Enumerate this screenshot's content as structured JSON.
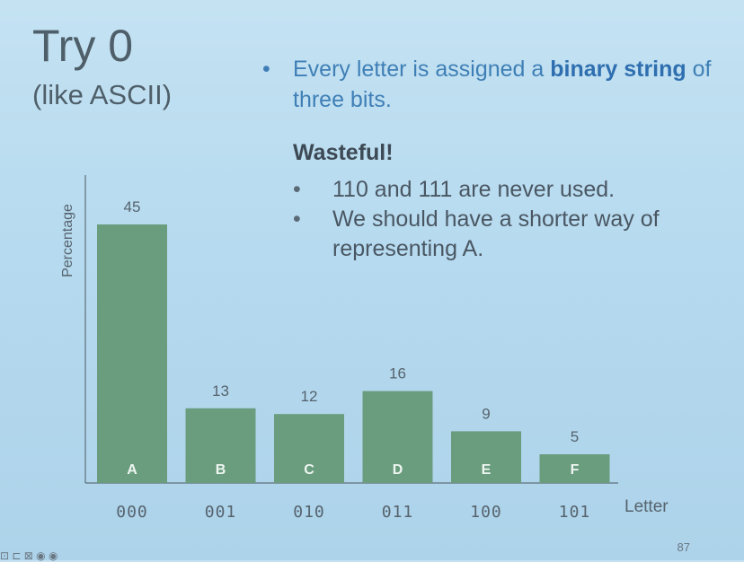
{
  "slide": {
    "title": "Try 0",
    "subtitle": "(like ASCII)",
    "bullet_marker": "•",
    "bullet_main_pre": "Every letter is assigned a ",
    "bullet_main_bold": "binary string",
    "bullet_main_post": " of three bits.",
    "wasteful_heading": "Wasteful!",
    "sub_bullets": [
      "110 and 111 are never used.",
      "We should have a shorter way of representing A."
    ],
    "slide_number": "87",
    "footer_mark": "⊡ ⊏ ⊠ ◉ ◉"
  },
  "colors": {
    "bar": "#6a9c7e",
    "bar_label": "#eef6f1",
    "axis": "#5f6f7a",
    "accent_blue": "#3f7fb6"
  },
  "chart_data": {
    "type": "bar",
    "title": "",
    "xlabel": "Letter",
    "ylabel": "Percentage",
    "categories": [
      "A",
      "B",
      "C",
      "D",
      "E",
      "F"
    ],
    "codes": [
      "000",
      "001",
      "010",
      "011",
      "100",
      "101"
    ],
    "values": [
      45,
      13,
      12,
      16,
      9,
      5
    ],
    "ylim": [
      0,
      50
    ],
    "grid": false
  }
}
